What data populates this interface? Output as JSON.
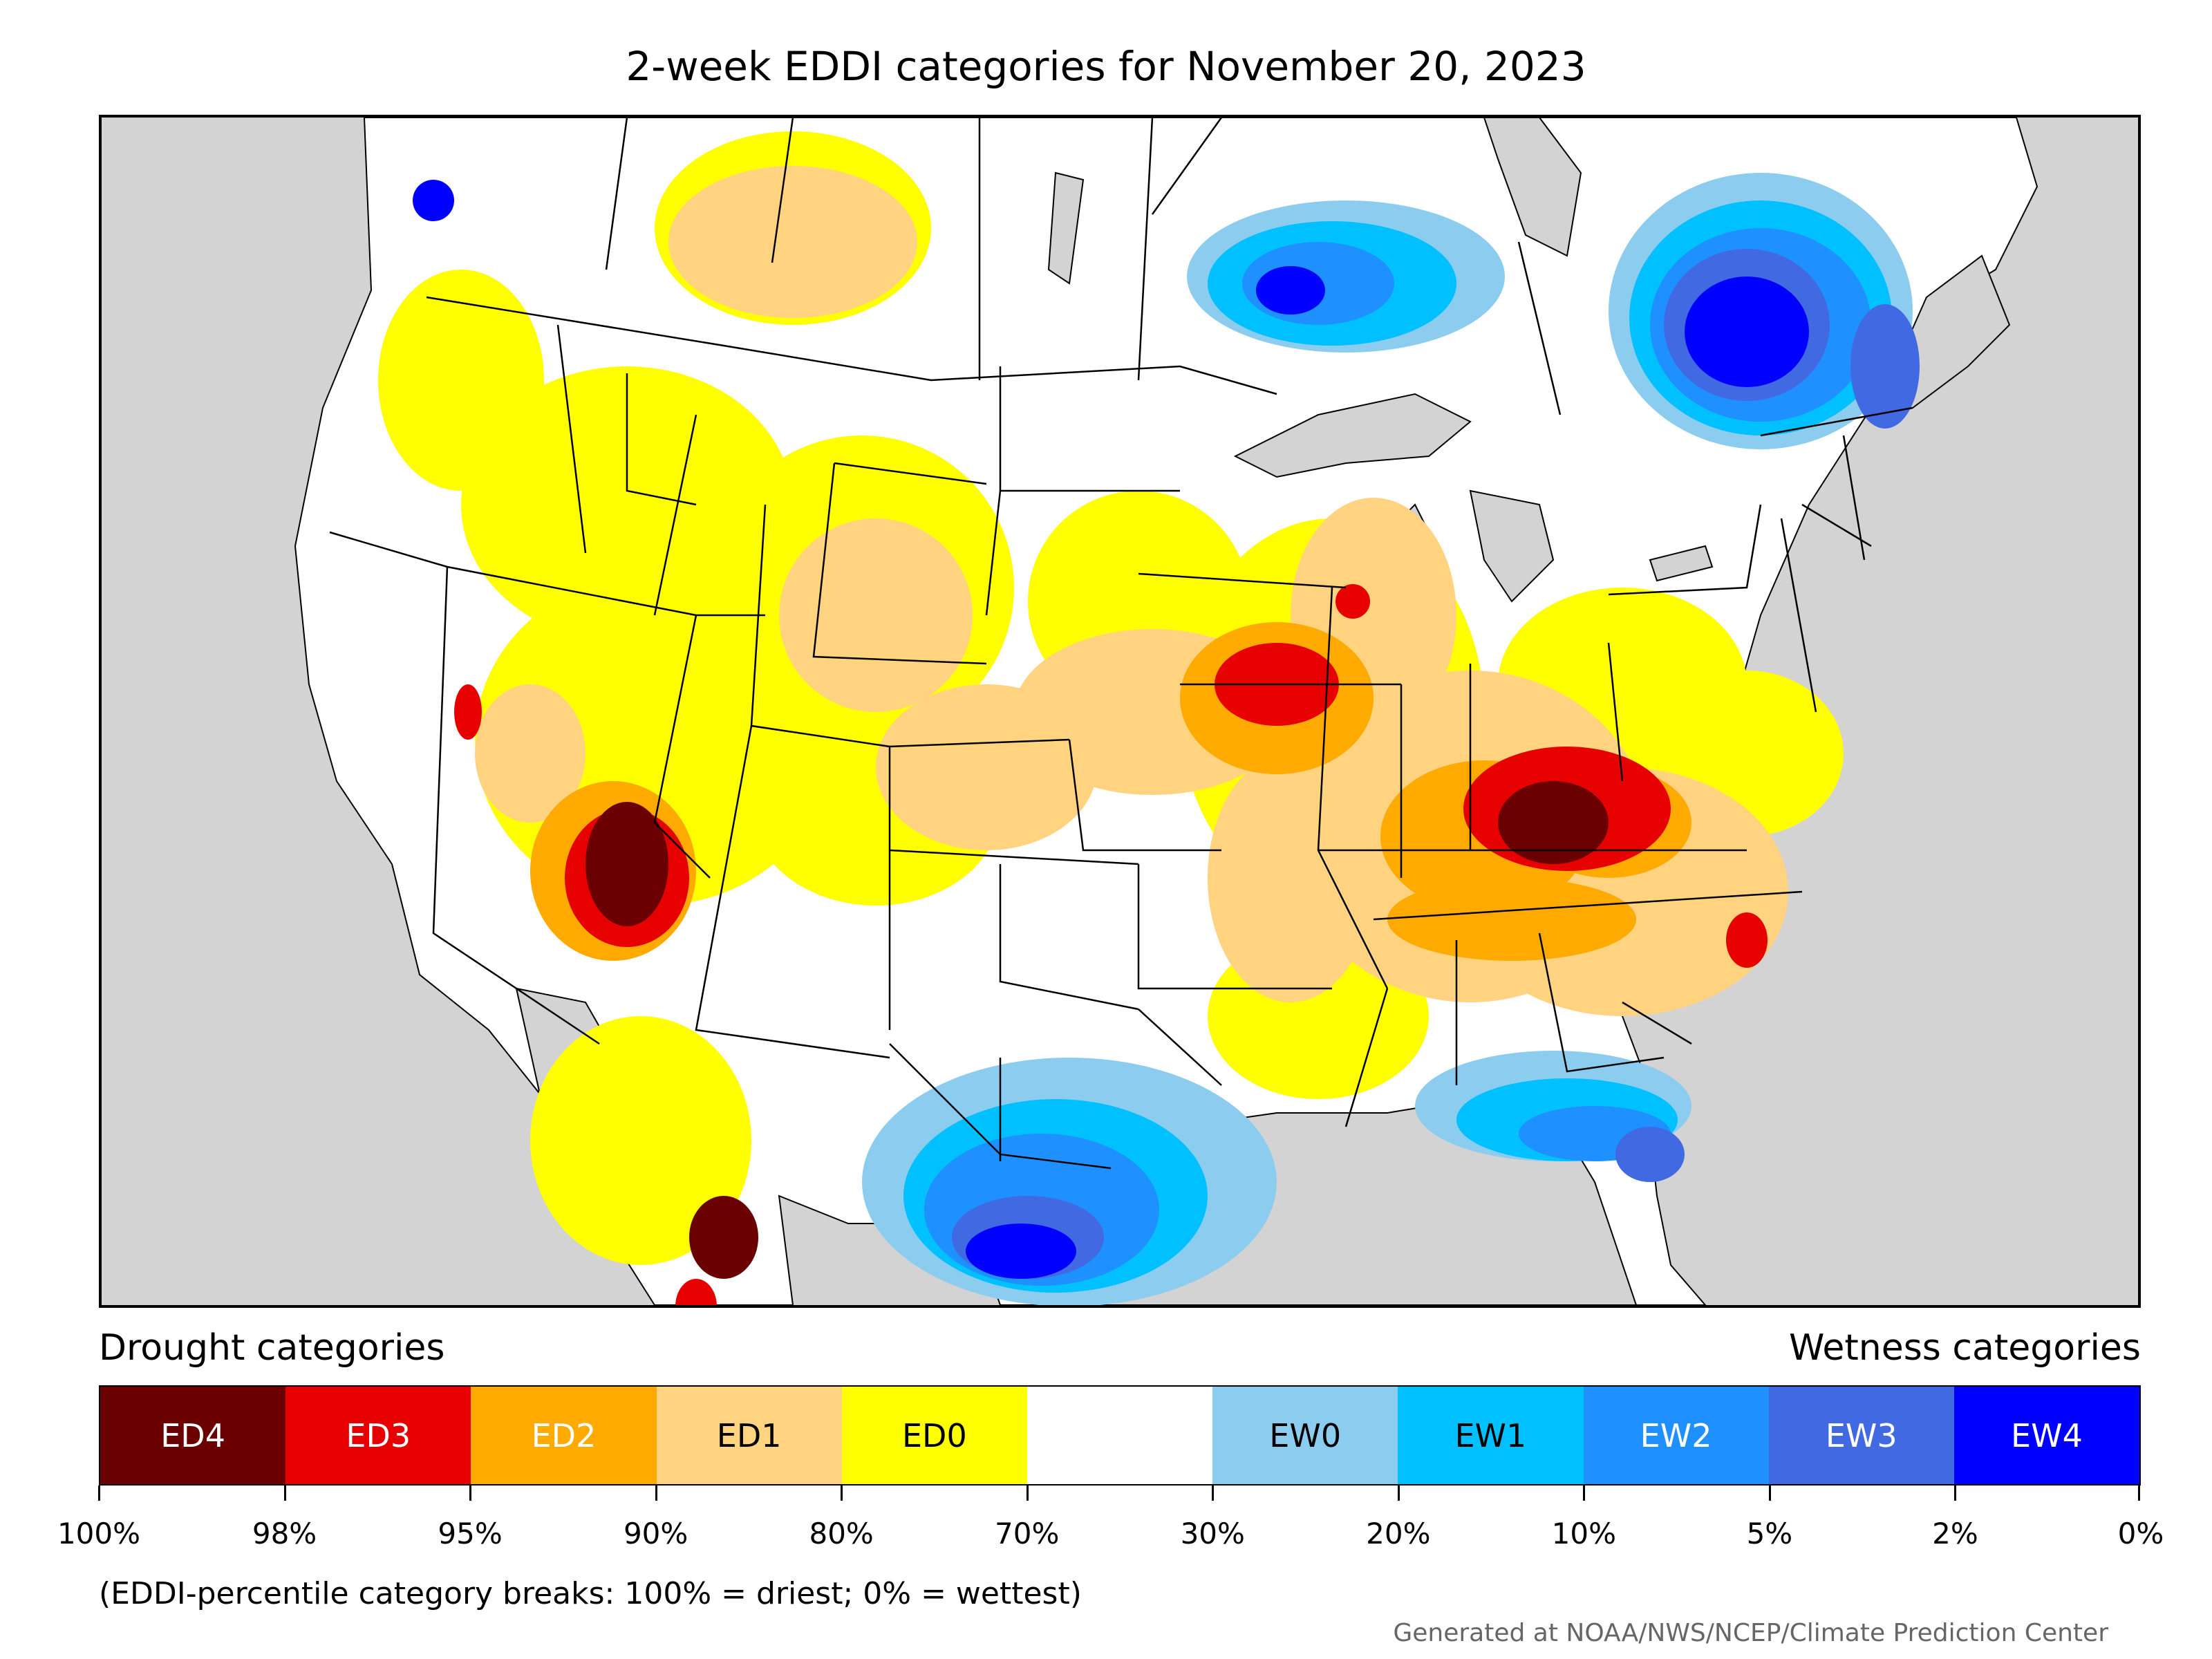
{
  "title": "2-week EDDI categories for November 20, 2023",
  "legend": {
    "drought_label": "Drought categories",
    "wetness_label": "Wetness categories",
    "categories": [
      {
        "label": "ED4",
        "color": "#6b0000",
        "text_color": "#ffffff"
      },
      {
        "label": "ED3",
        "color": "#e60000",
        "text_color": "#ffffff"
      },
      {
        "label": "ED2",
        "color": "#ffaa00",
        "text_color": "#ffffff"
      },
      {
        "label": "ED1",
        "color": "#ffd37f",
        "text_color": "#000000"
      },
      {
        "label": "ED0",
        "color": "#ffff00",
        "text_color": "#000000"
      },
      {
        "label": "",
        "color": "#ffffff",
        "text_color": "#000000"
      },
      {
        "label": "EW0",
        "color": "#8ccdef",
        "text_color": "#000000"
      },
      {
        "label": "EW1",
        "color": "#00c0ff",
        "text_color": "#000000"
      },
      {
        "label": "EW2",
        "color": "#1e90ff",
        "text_color": "#ffffff"
      },
      {
        "label": "EW3",
        "color": "#4169e1",
        "text_color": "#ffffff"
      },
      {
        "label": "EW4",
        "color": "#0000ff",
        "text_color": "#ffffff"
      }
    ],
    "tick_labels": [
      "100%",
      "98%",
      "95%",
      "90%",
      "80%",
      "70%",
      "30%",
      "20%",
      "10%",
      "5%",
      "2%",
      "0%"
    ]
  },
  "note": "(EDDI-percentile category breaks: 100% = driest; 0% = wettest)",
  "credit": "Generated at NOAA/NWS/NCEP/Climate Prediction Center",
  "map": {
    "land_color": "#ffffff",
    "water_color": "#d3d3d3",
    "border_color": "#000000"
  }
}
